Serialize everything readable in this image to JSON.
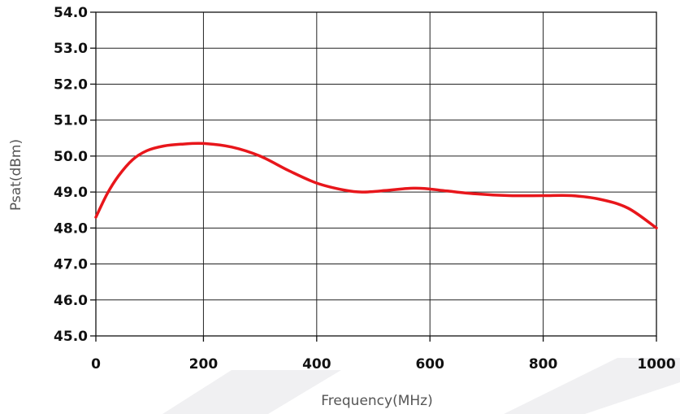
{
  "chart_data": {
    "type": "line",
    "title": "",
    "xlabel": "Frequency(MHz)",
    "ylabel": "Psat(dBm)",
    "xlim": [
      10,
      1000
    ],
    "ylim": [
      45.0,
      54.0
    ],
    "x_ticks": [
      0,
      200,
      400,
      600,
      800,
      1000
    ],
    "x_tick_labels": [
      "0",
      "200",
      "400",
      "600",
      "800",
      "1000"
    ],
    "y_ticks": [
      45.0,
      46.0,
      47.0,
      48.0,
      49.0,
      50.0,
      51.0,
      52.0,
      53.0,
      54.0
    ],
    "y_tick_labels": [
      "45.0",
      "46.0",
      "47.0",
      "48.0",
      "49.0",
      "50.0",
      "51.0",
      "52.0",
      "53.0",
      "54.0"
    ],
    "grid": true,
    "series": [
      {
        "color": "#e8161b",
        "x": [
          10,
          30,
          50,
          75,
          100,
          130,
          160,
          200,
          250,
          300,
          350,
          400,
          450,
          480,
          520,
          560,
          590,
          630,
          680,
          740,
          800,
          850,
          900,
          950,
          1000
        ],
        "y": [
          48.3,
          48.95,
          49.45,
          49.9,
          50.15,
          50.28,
          50.33,
          50.35,
          50.25,
          50.0,
          49.6,
          49.25,
          49.05,
          49.0,
          49.04,
          49.1,
          49.1,
          49.03,
          48.95,
          48.9,
          48.9,
          48.9,
          48.8,
          48.55,
          48.0
        ]
      }
    ]
  }
}
